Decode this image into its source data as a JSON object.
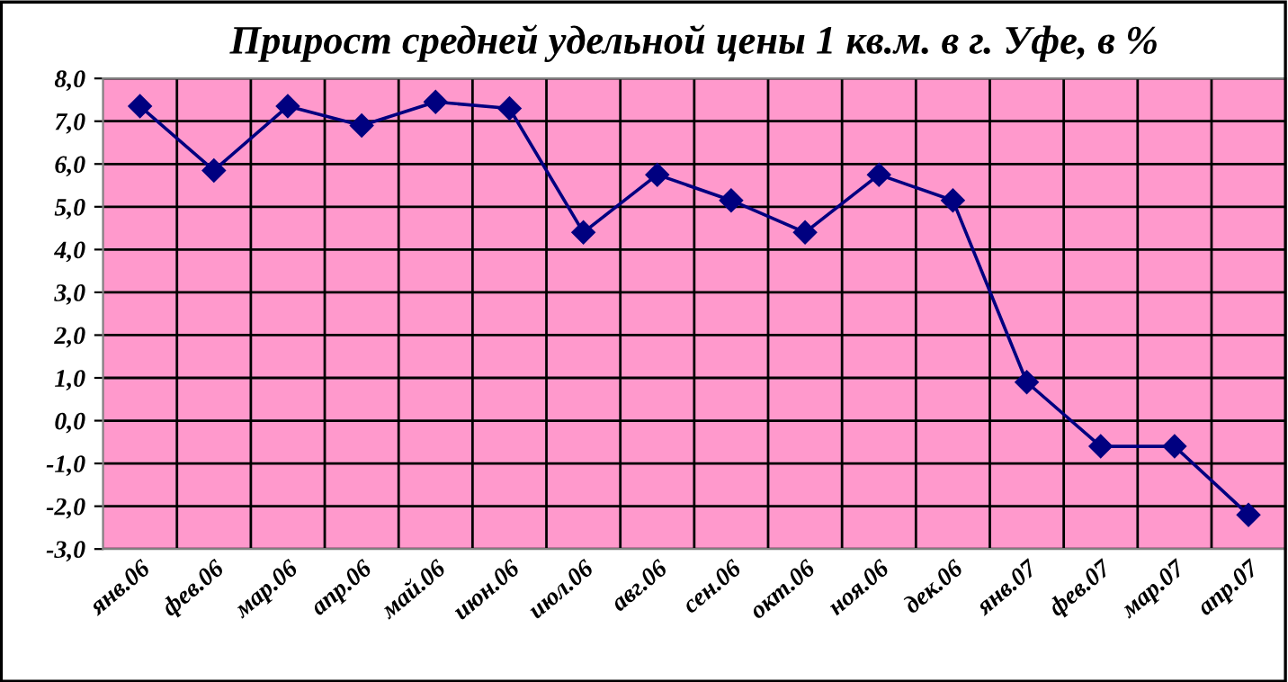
{
  "chart_data": {
    "type": "line",
    "title": "Прирост средней удельной цены 1 кв.м. в г. Уфе, в %",
    "categories": [
      "янв.06",
      "фев.06",
      "мар.06",
      "апр.06",
      "май.06",
      "июн.06",
      "июл.06",
      "авг.06",
      "сен.06",
      "окт.06",
      "ноя.06",
      "дек.06",
      "янв.07",
      "фев.07",
      "мар.07",
      "апр.07"
    ],
    "series": [
      {
        "color": "#000080",
        "values": [
          7.35,
          5.85,
          7.35,
          6.9,
          7.45,
          7.3,
          4.4,
          5.75,
          5.15,
          4.4,
          5.75,
          5.15,
          0.9,
          -0.6,
          -0.6,
          -2.2
        ]
      }
    ],
    "ylim": [
      -3,
      8
    ],
    "yticks": [
      {
        "value": -3,
        "label": "-3,0"
      },
      {
        "value": -2,
        "label": "-2,0"
      },
      {
        "value": -1,
        "label": "-1,0"
      },
      {
        "value": 0,
        "label": "0,0"
      },
      {
        "value": 1,
        "label": "1,0"
      },
      {
        "value": 2,
        "label": "2,0"
      },
      {
        "value": 3,
        "label": "3,0"
      },
      {
        "value": 4,
        "label": "4,0"
      },
      {
        "value": 5,
        "label": "5,0"
      },
      {
        "value": 6,
        "label": "6,0"
      },
      {
        "value": 7,
        "label": "7,0"
      },
      {
        "value": 8,
        "label": "8,0"
      }
    ],
    "grid": true,
    "marker": "diamond",
    "line_style": "solid",
    "legend": false
  }
}
